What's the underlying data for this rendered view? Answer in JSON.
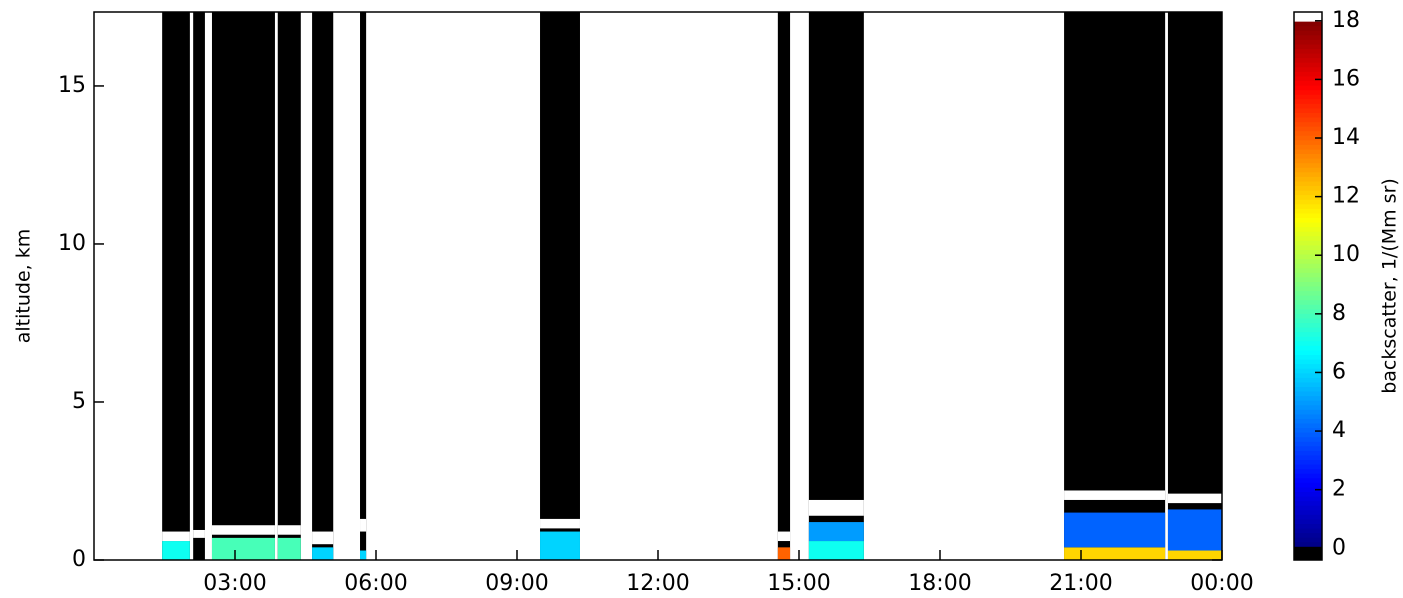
{
  "chart_data": {
    "type": "heatmap",
    "y_label": "altitude, km",
    "xlim": [
      0,
      24
    ],
    "xticks": [
      {
        "value": 3,
        "label": "03:00"
      },
      {
        "value": 6,
        "label": "06:00"
      },
      {
        "value": 9,
        "label": "09:00"
      },
      {
        "value": 12,
        "label": "12:00"
      },
      {
        "value": 15,
        "label": "15:00"
      },
      {
        "value": 18,
        "label": "18:00"
      },
      {
        "value": 21,
        "label": "21:00"
      },
      {
        "value": 24,
        "label": "00:00"
      }
    ],
    "ylim": [
      0,
      17.34
    ],
    "yticks": [
      0,
      5,
      10,
      15
    ],
    "colormap": "jet",
    "colorbar_label": "backscatter, 1/(Mm sr)",
    "clim": [
      -0.4,
      18.3
    ],
    "cticks": [
      0,
      2,
      4,
      6,
      8,
      10,
      12,
      14,
      16,
      18
    ],
    "cells": [
      {
        "x0": 1.45,
        "x1": 2.04,
        "y0": 0,
        "y1": 17.34,
        "v": 0
      },
      {
        "x0": 1.45,
        "x1": 2.04,
        "y0": 0,
        "y1": 0.6,
        "v": 7
      },
      {
        "x0": 1.45,
        "x1": 2.04,
        "y0": 0.6,
        "y1": 0.9,
        "v": 20
      },
      {
        "x0": 2.11,
        "x1": 2.36,
        "y0": 0,
        "y1": 17.34,
        "v": 0
      },
      {
        "x0": 2.11,
        "x1": 2.36,
        "y0": 0.7,
        "y1": 0.95,
        "v": 20
      },
      {
        "x0": 2.51,
        "x1": 3.85,
        "y0": 0,
        "y1": 17.34,
        "v": 0
      },
      {
        "x0": 2.51,
        "x1": 3.85,
        "y0": 0,
        "y1": 0.7,
        "v": 8
      },
      {
        "x0": 2.51,
        "x1": 3.85,
        "y0": 0.8,
        "y1": 1.1,
        "v": 20
      },
      {
        "x0": 3.91,
        "x1": 4.4,
        "y0": 0,
        "y1": 17.34,
        "v": 0
      },
      {
        "x0": 3.91,
        "x1": 4.4,
        "y0": 0,
        "y1": 0.7,
        "v": 8
      },
      {
        "x0": 3.91,
        "x1": 4.4,
        "y0": 0.8,
        "y1": 1.1,
        "v": 20
      },
      {
        "x0": 4.64,
        "x1": 5.09,
        "y0": 0,
        "y1": 17.34,
        "v": 0
      },
      {
        "x0": 4.64,
        "x1": 5.09,
        "y0": 0,
        "y1": 0.4,
        "v": 6
      },
      {
        "x0": 4.64,
        "x1": 5.09,
        "y0": 0.5,
        "y1": 0.9,
        "v": 20
      },
      {
        "x0": 5.66,
        "x1": 5.79,
        "y0": 0,
        "y1": 17.34,
        "v": 0
      },
      {
        "x0": 5.66,
        "x1": 5.79,
        "y0": 0,
        "y1": 0.3,
        "v": 6
      },
      {
        "x0": 5.66,
        "x1": 5.79,
        "y0": 0.9,
        "y1": 1.3,
        "v": 20
      },
      {
        "x0": 9.49,
        "x1": 10.34,
        "y0": 0,
        "y1": 17.34,
        "v": 0
      },
      {
        "x0": 9.49,
        "x1": 10.34,
        "y0": 0,
        "y1": 0.9,
        "v": 6
      },
      {
        "x0": 9.49,
        "x1": 10.34,
        "y0": 1.0,
        "y1": 1.3,
        "v": 20
      },
      {
        "x0": 14.55,
        "x1": 14.81,
        "y0": 0,
        "y1": 17.34,
        "v": 0
      },
      {
        "x0": 14.55,
        "x1": 14.81,
        "y0": 0,
        "y1": 0.4,
        "v": 14
      },
      {
        "x0": 14.55,
        "x1": 14.81,
        "y0": 0.6,
        "y1": 0.9,
        "v": 20
      },
      {
        "x0": 15.21,
        "x1": 16.38,
        "y0": 0,
        "y1": 17.34,
        "v": 0
      },
      {
        "x0": 15.21,
        "x1": 16.38,
        "y0": 0,
        "y1": 0.6,
        "v": 7
      },
      {
        "x0": 15.21,
        "x1": 16.38,
        "y0": 0.6,
        "y1": 1.2,
        "v": 5
      },
      {
        "x0": 15.21,
        "x1": 16.38,
        "y0": 1.4,
        "y1": 1.9,
        "v": 20
      },
      {
        "x0": 20.64,
        "x1": 22.79,
        "y0": 0,
        "y1": 17.34,
        "v": 0
      },
      {
        "x0": 20.64,
        "x1": 22.79,
        "y0": 0,
        "y1": 0.4,
        "v": 12
      },
      {
        "x0": 20.64,
        "x1": 22.79,
        "y0": 0.4,
        "y1": 1.5,
        "v": 4
      },
      {
        "x0": 20.64,
        "x1": 22.79,
        "y0": 1.9,
        "y1": 2.2,
        "v": 20
      },
      {
        "x0": 22.85,
        "x1": 24,
        "y0": 0,
        "y1": 17.34,
        "v": 0
      },
      {
        "x0": 22.85,
        "x1": 24,
        "y0": 0,
        "y1": 0.3,
        "v": 12
      },
      {
        "x0": 22.85,
        "x1": 24,
        "y0": 0.3,
        "y1": 1.6,
        "v": 4
      },
      {
        "x0": 22.85,
        "x1": 24,
        "y0": 1.8,
        "y1": 2.1,
        "v": 20
      }
    ]
  }
}
